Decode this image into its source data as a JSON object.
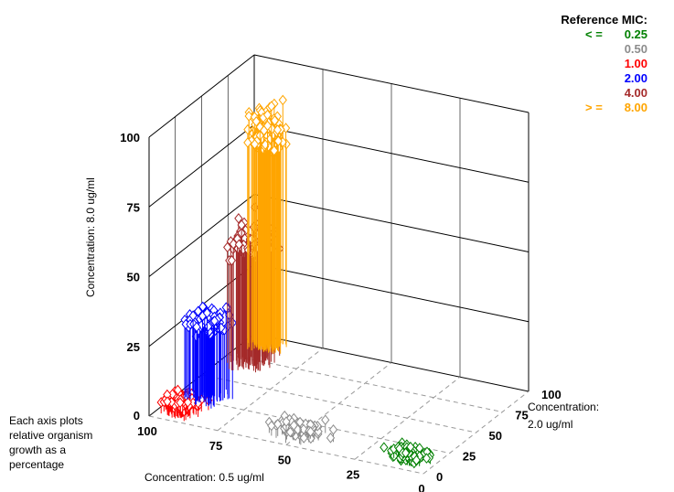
{
  "chart_data": {
    "type": "scatter",
    "title": "",
    "axes": {
      "x": {
        "label": "Concentration: 0.5 ug/ml",
        "ticks": [
          "0",
          "25",
          "50",
          "75",
          "100"
        ],
        "range": [
          0,
          100
        ]
      },
      "y": {
        "label": "Concentration: 2.0 ug/ml",
        "ticks": [
          "0",
          "25",
          "50",
          "75",
          "100"
        ],
        "range": [
          0,
          100
        ]
      },
      "z": {
        "label": "Concentration: 8.0 ug/ml",
        "ticks": [
          "0",
          "25",
          "50",
          "75",
          "100"
        ],
        "range": [
          0,
          100
        ]
      }
    },
    "legend": {
      "title": "Reference  MIC:",
      "placement": "top-right",
      "entries": [
        {
          "op": "< =",
          "value": "0.25",
          "color": "#008000"
        },
        {
          "op": "",
          "value": "0.50",
          "color": "#8c8c8c"
        },
        {
          "op": "",
          "value": "1.00",
          "color": "#ff0000"
        },
        {
          "op": "",
          "value": "2.00",
          "color": "#0000ff"
        },
        {
          "op": "",
          "value": "4.00",
          "color": "#a52a2a"
        },
        {
          "op": "> =",
          "value": "8.00",
          "color": "#ffa500"
        }
      ]
    },
    "marker": "open-diamond with drop line to floor",
    "grid": true,
    "series": [
      {
        "name": "0.25",
        "color": "#008000",
        "count": 90,
        "center": [
          10,
          10,
          2
        ],
        "spread": [
          9,
          10,
          3
        ]
      },
      {
        "name": "0.50",
        "color": "#8c8c8c",
        "count": 90,
        "center": [
          48,
          10,
          3
        ],
        "spread": [
          13,
          10,
          3
        ]
      },
      {
        "name": "1.00",
        "color": "#ff0000",
        "count": 110,
        "center": [
          92,
          10,
          4
        ],
        "spread": [
          8,
          10,
          4
        ]
      },
      {
        "name": "2.00",
        "color": "#0000ff",
        "count": 90,
        "center": [
          90,
          30,
          27
        ],
        "spread": [
          10,
          14,
          8
        ]
      },
      {
        "name": "4.00",
        "color": "#a52a2a",
        "count": 110,
        "center": [
          90,
          72,
          42
        ],
        "spread": [
          10,
          14,
          12
        ]
      },
      {
        "name": "8.00",
        "color": "#ffa500",
        "count": 160,
        "center": [
          92,
          90,
          75
        ],
        "spread": [
          8,
          9,
          18
        ]
      }
    ]
  },
  "footnote": "Each axis plots relative organism growth as a percentage"
}
